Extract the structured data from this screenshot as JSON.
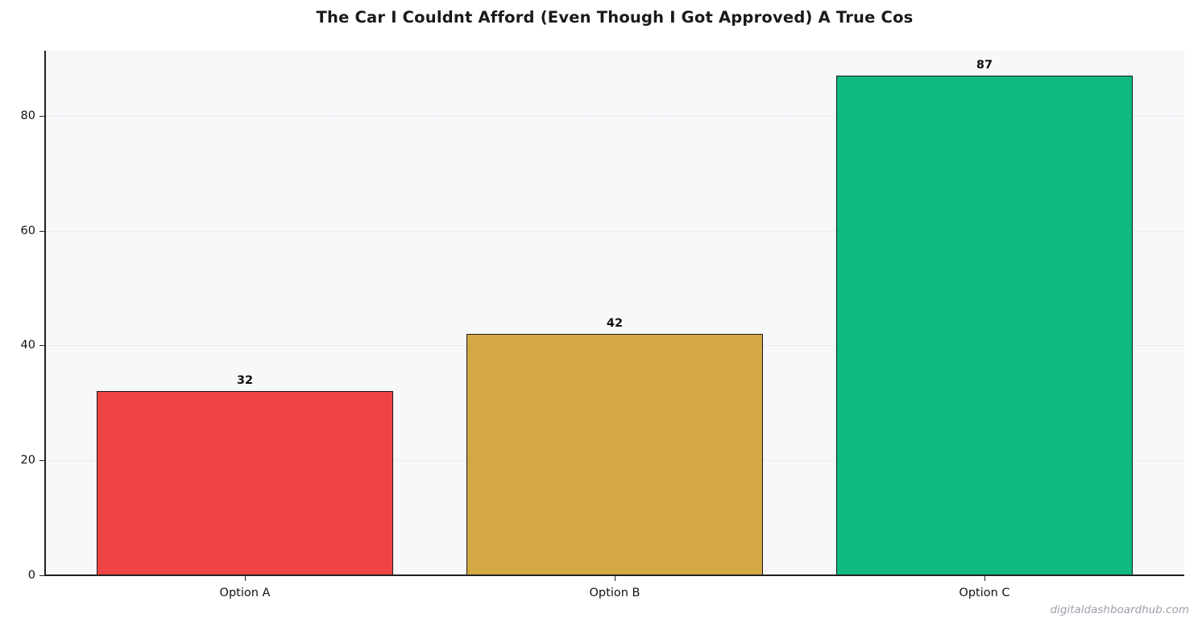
{
  "chart_data": {
    "type": "bar",
    "title": "The Car I Couldnt Afford (Even Though I Got Approved)  A True Cos",
    "xlabel": "",
    "ylabel": "",
    "categories": [
      "Option A",
      "Option B",
      "Option C"
    ],
    "values": [
      32,
      42,
      87
    ],
    "colors": [
      "#ef4444",
      "#d4a843",
      "#10b981"
    ],
    "ylim": [
      0,
      91.3
    ],
    "yticks": [
      0,
      20,
      40,
      60,
      80
    ],
    "grid": true,
    "grid_axis": "y",
    "grid_style": "dashed",
    "legend": null,
    "bar_labels": [
      "32",
      "42",
      "87"
    ],
    "plot_background": "#f7f8fa"
  },
  "watermark": "digitaldashboardhub.com"
}
